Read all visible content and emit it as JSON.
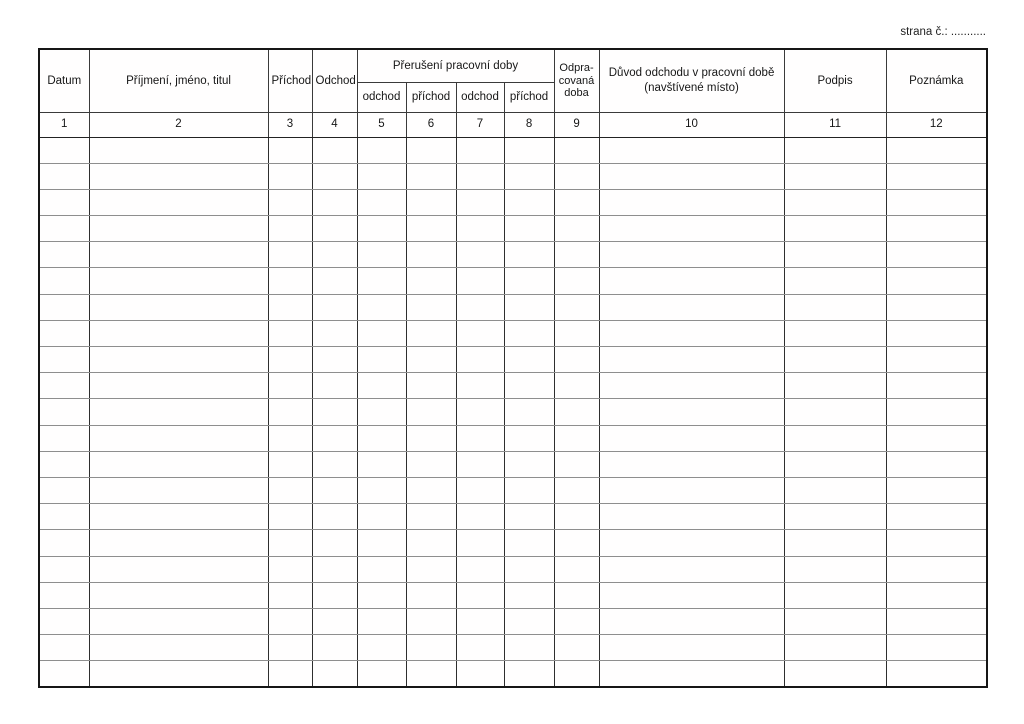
{
  "page": {
    "strana_label": "strana č.: ..........."
  },
  "table": {
    "group_header": "Přerušení pracovní doby",
    "columns": [
      {
        "label": "Datum",
        "number": "1"
      },
      {
        "label": "Příjmení, jméno, titul",
        "number": "2"
      },
      {
        "label": "Příchod",
        "number": "3"
      },
      {
        "label": "Odchod",
        "number": "4"
      },
      {
        "label": "odchod",
        "number": "5"
      },
      {
        "label": "příchod",
        "number": "6"
      },
      {
        "label": "odchod",
        "number": "7"
      },
      {
        "label": "příchod",
        "number": "8"
      },
      {
        "label": "Odpra-\ncovaná\ndoba",
        "number": "9"
      },
      {
        "label": "Důvod odchodu v pracovní době\n(navštívené místo)",
        "number": "10"
      },
      {
        "label": "Podpis",
        "number": "11"
      },
      {
        "label": "Poznámka",
        "number": "12"
      }
    ],
    "empty_row_count": 21
  }
}
